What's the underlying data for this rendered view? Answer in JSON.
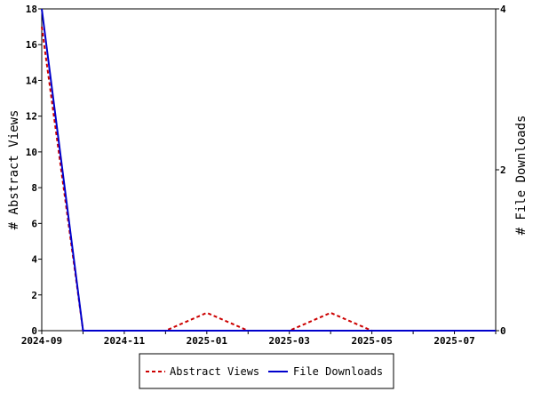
{
  "chart_data": {
    "type": "line",
    "title": "",
    "x": [
      "2024-09",
      "2024-10",
      "2024-11",
      "2024-12",
      "2025-01",
      "2025-02",
      "2025-03",
      "2025-04",
      "2025-05",
      "2025-06",
      "2025-07",
      "2025-08"
    ],
    "x_tick_labels": [
      "2024-09",
      "2024-11",
      "2025-01",
      "2025-03",
      "2025-05",
      "2025-07"
    ],
    "y_left": {
      "label": "# Abstract Views",
      "ylim": [
        0,
        18
      ],
      "ticks": [
        0,
        2,
        4,
        6,
        8,
        10,
        12,
        14,
        16,
        18
      ]
    },
    "y_right": {
      "label": "# File Downloads",
      "ylim": [
        0,
        4
      ],
      "ticks": [
        0,
        2,
        4
      ]
    },
    "series": [
      {
        "name": "Abstract Views",
        "axis": "left",
        "color": "#cc0000",
        "dash": "dashed",
        "values": [
          17,
          0,
          0,
          0,
          1,
          0,
          0,
          1,
          0,
          0,
          0,
          0
        ]
      },
      {
        "name": "File Downloads",
        "axis": "right",
        "color": "#0000cc",
        "dash": "solid",
        "values": [
          4,
          0,
          0,
          0,
          0,
          0,
          0,
          0,
          0,
          0,
          0,
          0
        ]
      }
    ],
    "grid": false,
    "legend_position": "bottom-center"
  }
}
